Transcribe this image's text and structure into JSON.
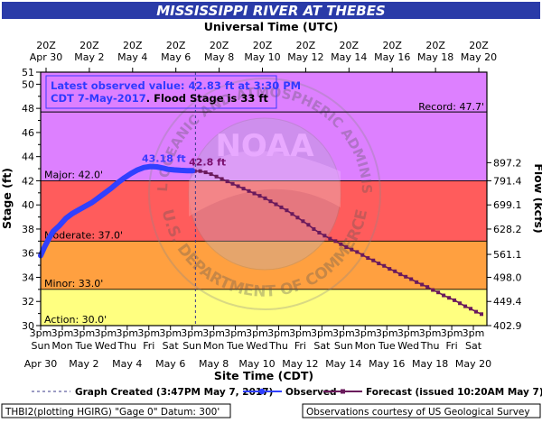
{
  "chart_data": {
    "type": "line",
    "title": "MISSISSIPPI RIVER AT THEBES",
    "top_axis_title": "Universal Time (UTC)",
    "bottom_axis_title": "Site Time (CDT)",
    "ylabel": "Stage (ft)",
    "y2label": "Flow (kcfs)",
    "ylim": [
      30,
      51
    ],
    "xlim": [
      "2017-04-30 15:00",
      "2017-05-21 06:00"
    ],
    "y_ticks": [
      30,
      32,
      34,
      36,
      38,
      40,
      42,
      44,
      46,
      48,
      50,
      51
    ],
    "y2_ticks": [
      {
        "label": "897.2",
        "stage": 43.5
      },
      {
        "label": "791.4",
        "stage": 42.0
      },
      {
        "label": "699.1",
        "stage": 40.0
      },
      {
        "label": "628.2",
        "stage": 38.0
      },
      {
        "label": "561.1",
        "stage": 35.9
      },
      {
        "label": "498.0",
        "stage": 34.0
      },
      {
        "label": "449.4",
        "stage": 32.0
      },
      {
        "label": "402.9",
        "stage": 30.0
      }
    ],
    "top_ticks": [
      {
        "t": 9.875,
        "l1": "20Z",
        "l2": "Apr 30"
      },
      {
        "t": 11.875,
        "l1": "20Z",
        "l2": "May 2"
      },
      {
        "t": 13.875,
        "l1": "20Z",
        "l2": "May 4"
      },
      {
        "t": 15.875,
        "l1": "20Z",
        "l2": "May 6"
      },
      {
        "t": 17.875,
        "l1": "20Z",
        "l2": "May 8"
      },
      {
        "t": 19.875,
        "l1": "20Z",
        "l2": "May 10"
      },
      {
        "t": 21.875,
        "l1": "20Z",
        "l2": "May 12"
      },
      {
        "t": 23.875,
        "l1": "20Z",
        "l2": "May 14"
      },
      {
        "t": 25.875,
        "l1": "20Z",
        "l2": "May 16"
      },
      {
        "t": 27.875,
        "l1": "20Z",
        "l2": "May 18"
      },
      {
        "t": 29.875,
        "l1": "20Z",
        "l2": "May 20"
      }
    ],
    "bottom_ticks": [
      {
        "t": 9.625,
        "l1": "3pm",
        "l2": "Sun",
        "date": "Apr 30"
      },
      {
        "t": 10.625,
        "l1": "3pm",
        "l2": "Mon",
        "date": ""
      },
      {
        "t": 11.625,
        "l1": "3pm",
        "l2": "Tue",
        "date": "May 2"
      },
      {
        "t": 12.625,
        "l1": "3pm",
        "l2": "Wed",
        "date": ""
      },
      {
        "t": 13.625,
        "l1": "3pm",
        "l2": "Thu",
        "date": "May 4"
      },
      {
        "t": 14.625,
        "l1": "3pm",
        "l2": "Fri",
        "date": ""
      },
      {
        "t": 15.625,
        "l1": "3pm",
        "l2": "Sat",
        "date": "May 6"
      },
      {
        "t": 16.625,
        "l1": "3pm",
        "l2": "Sun",
        "date": ""
      },
      {
        "t": 17.625,
        "l1": "3pm",
        "l2": "Mon",
        "date": "May 8"
      },
      {
        "t": 18.625,
        "l1": "3pm",
        "l2": "Tue",
        "date": ""
      },
      {
        "t": 19.625,
        "l1": "3pm",
        "l2": "Wed",
        "date": "May 10"
      },
      {
        "t": 20.625,
        "l1": "3pm",
        "l2": "Thu",
        "date": ""
      },
      {
        "t": 21.625,
        "l1": "3pm",
        "l2": "Fri",
        "date": "May 12"
      },
      {
        "t": 22.625,
        "l1": "3pm",
        "l2": "Sat",
        "date": ""
      },
      {
        "t": 23.625,
        "l1": "3pm",
        "l2": "Sun",
        "date": "May 14"
      },
      {
        "t": 24.625,
        "l1": "3pm",
        "l2": "Mon",
        "date": ""
      },
      {
        "t": 25.625,
        "l1": "3pm",
        "l2": "Tue",
        "date": "May 16"
      },
      {
        "t": 26.625,
        "l1": "3pm",
        "l2": "Wed",
        "date": ""
      },
      {
        "t": 27.625,
        "l1": "3pm",
        "l2": "Thu",
        "date": "May 18"
      },
      {
        "t": 28.625,
        "l1": "3pm",
        "l2": "Fri",
        "date": ""
      },
      {
        "t": 29.625,
        "l1": "3pm",
        "l2": "Sat",
        "date": "May 20"
      }
    ],
    "flood_zones": [
      {
        "name": "Action",
        "label": "Action: 30.0'",
        "from": 30,
        "to": 33,
        "color": "#ffff80"
      },
      {
        "name": "Minor",
        "label": "Minor: 33.0'",
        "from": 33,
        "to": 37,
        "color": "#ffa040"
      },
      {
        "name": "Moderate",
        "label": "Moderate: 37.0'",
        "from": 37,
        "to": 42,
        "color": "#ff5c5c"
      },
      {
        "name": "Major",
        "label": "Major: 42.0'",
        "from": 42,
        "to": 51,
        "color": "#dd80ff"
      }
    ],
    "record": {
      "label": "Record: 47.7'",
      "value": 47.7
    },
    "info_box": {
      "line1": "Latest observed value: 42.83  ft at 3:30 PM",
      "line2a": "CDT 7-May-2017",
      "line2b": ". Flood Stage is 33 ft",
      "line1_color": "#2f3aff",
      "line2a_color": "#2f3aff",
      "line2b_color": "#000000"
    },
    "graph_created_t": 16.78,
    "peak_observed": {
      "label": "43.18 ft",
      "t": 15.4,
      "value": 43.18,
      "color": "#3a3aff"
    },
    "peak_forecast": {
      "label": "42.8 ft",
      "t": 17.0,
      "value": 42.8,
      "color": "#7a0f6e"
    },
    "observed": {
      "name": "Observed",
      "color": "#3040ff",
      "t": [
        9.625,
        9.8,
        10.0,
        10.2,
        10.5,
        10.8,
        11.1,
        11.4,
        11.7,
        12.0,
        12.3,
        12.6,
        12.9,
        13.2,
        13.5,
        13.8,
        14.1,
        14.4,
        14.7,
        15.0,
        15.3,
        15.5,
        15.8,
        16.1,
        16.4,
        16.65
      ],
      "values": [
        35.8,
        36.5,
        37.2,
        37.8,
        38.3,
        38.9,
        39.3,
        39.6,
        39.9,
        40.2,
        40.6,
        41.0,
        41.4,
        41.85,
        42.25,
        42.6,
        42.9,
        43.1,
        43.18,
        43.15,
        43.05,
        42.95,
        42.9,
        42.86,
        42.84,
        42.83
      ]
    },
    "forecast": {
      "name": "Forecast (issued 10:20AM May 7)",
      "color": "#6a1a5c",
      "t": [
        16.75,
        17.0,
        17.25,
        17.5,
        17.75,
        18.0,
        18.25,
        18.5,
        18.75,
        19.0,
        19.25,
        19.5,
        19.75,
        20.0,
        20.25,
        20.5,
        20.75,
        21.0,
        21.25,
        21.5,
        21.75,
        22.0,
        22.25,
        22.5,
        22.75,
        23.0,
        23.25,
        23.5,
        23.75,
        24.0,
        24.25,
        24.5,
        24.75,
        25.0,
        25.25,
        25.5,
        25.75,
        26.0,
        26.25,
        26.5,
        26.75,
        27.0,
        27.25,
        27.5,
        27.75,
        28.0,
        28.25,
        28.5,
        28.75,
        29.0,
        29.25,
        29.5,
        29.75,
        30.0
      ],
      "values": [
        42.8,
        42.8,
        42.7,
        42.55,
        42.35,
        42.15,
        41.95,
        41.75,
        41.55,
        41.35,
        41.15,
        40.95,
        40.75,
        40.55,
        40.3,
        40.05,
        39.8,
        39.55,
        39.25,
        38.95,
        38.65,
        38.35,
        38.0,
        37.7,
        37.45,
        37.2,
        37.0,
        36.75,
        36.5,
        36.3,
        36.1,
        35.85,
        35.6,
        35.4,
        35.15,
        34.95,
        34.7,
        34.5,
        34.25,
        34.05,
        33.85,
        33.6,
        33.4,
        33.2,
        32.95,
        32.75,
        32.5,
        32.3,
        32.1,
        31.85,
        31.6,
        31.4,
        31.15,
        30.95
      ]
    },
    "legend": {
      "graph_created": "Graph Created (3:47PM May 7, 2017)",
      "observed": "Observed",
      "forecast": "Forecast (issued 10:20AM May 7)",
      "placement": "bottom"
    },
    "footer": {
      "left": "THBI2(plotting HGIRG) \"Gage 0\" Datum: 300'",
      "right": "Observations courtesy of US Geological Survey"
    },
    "watermark_text": {
      "top": "NATIONAL OCEANIC AND ATMOSPHERIC ADMINISTRATION",
      "center": "NOAA",
      "bottom": "U.S. DEPARTMENT OF COMMERCE"
    }
  }
}
